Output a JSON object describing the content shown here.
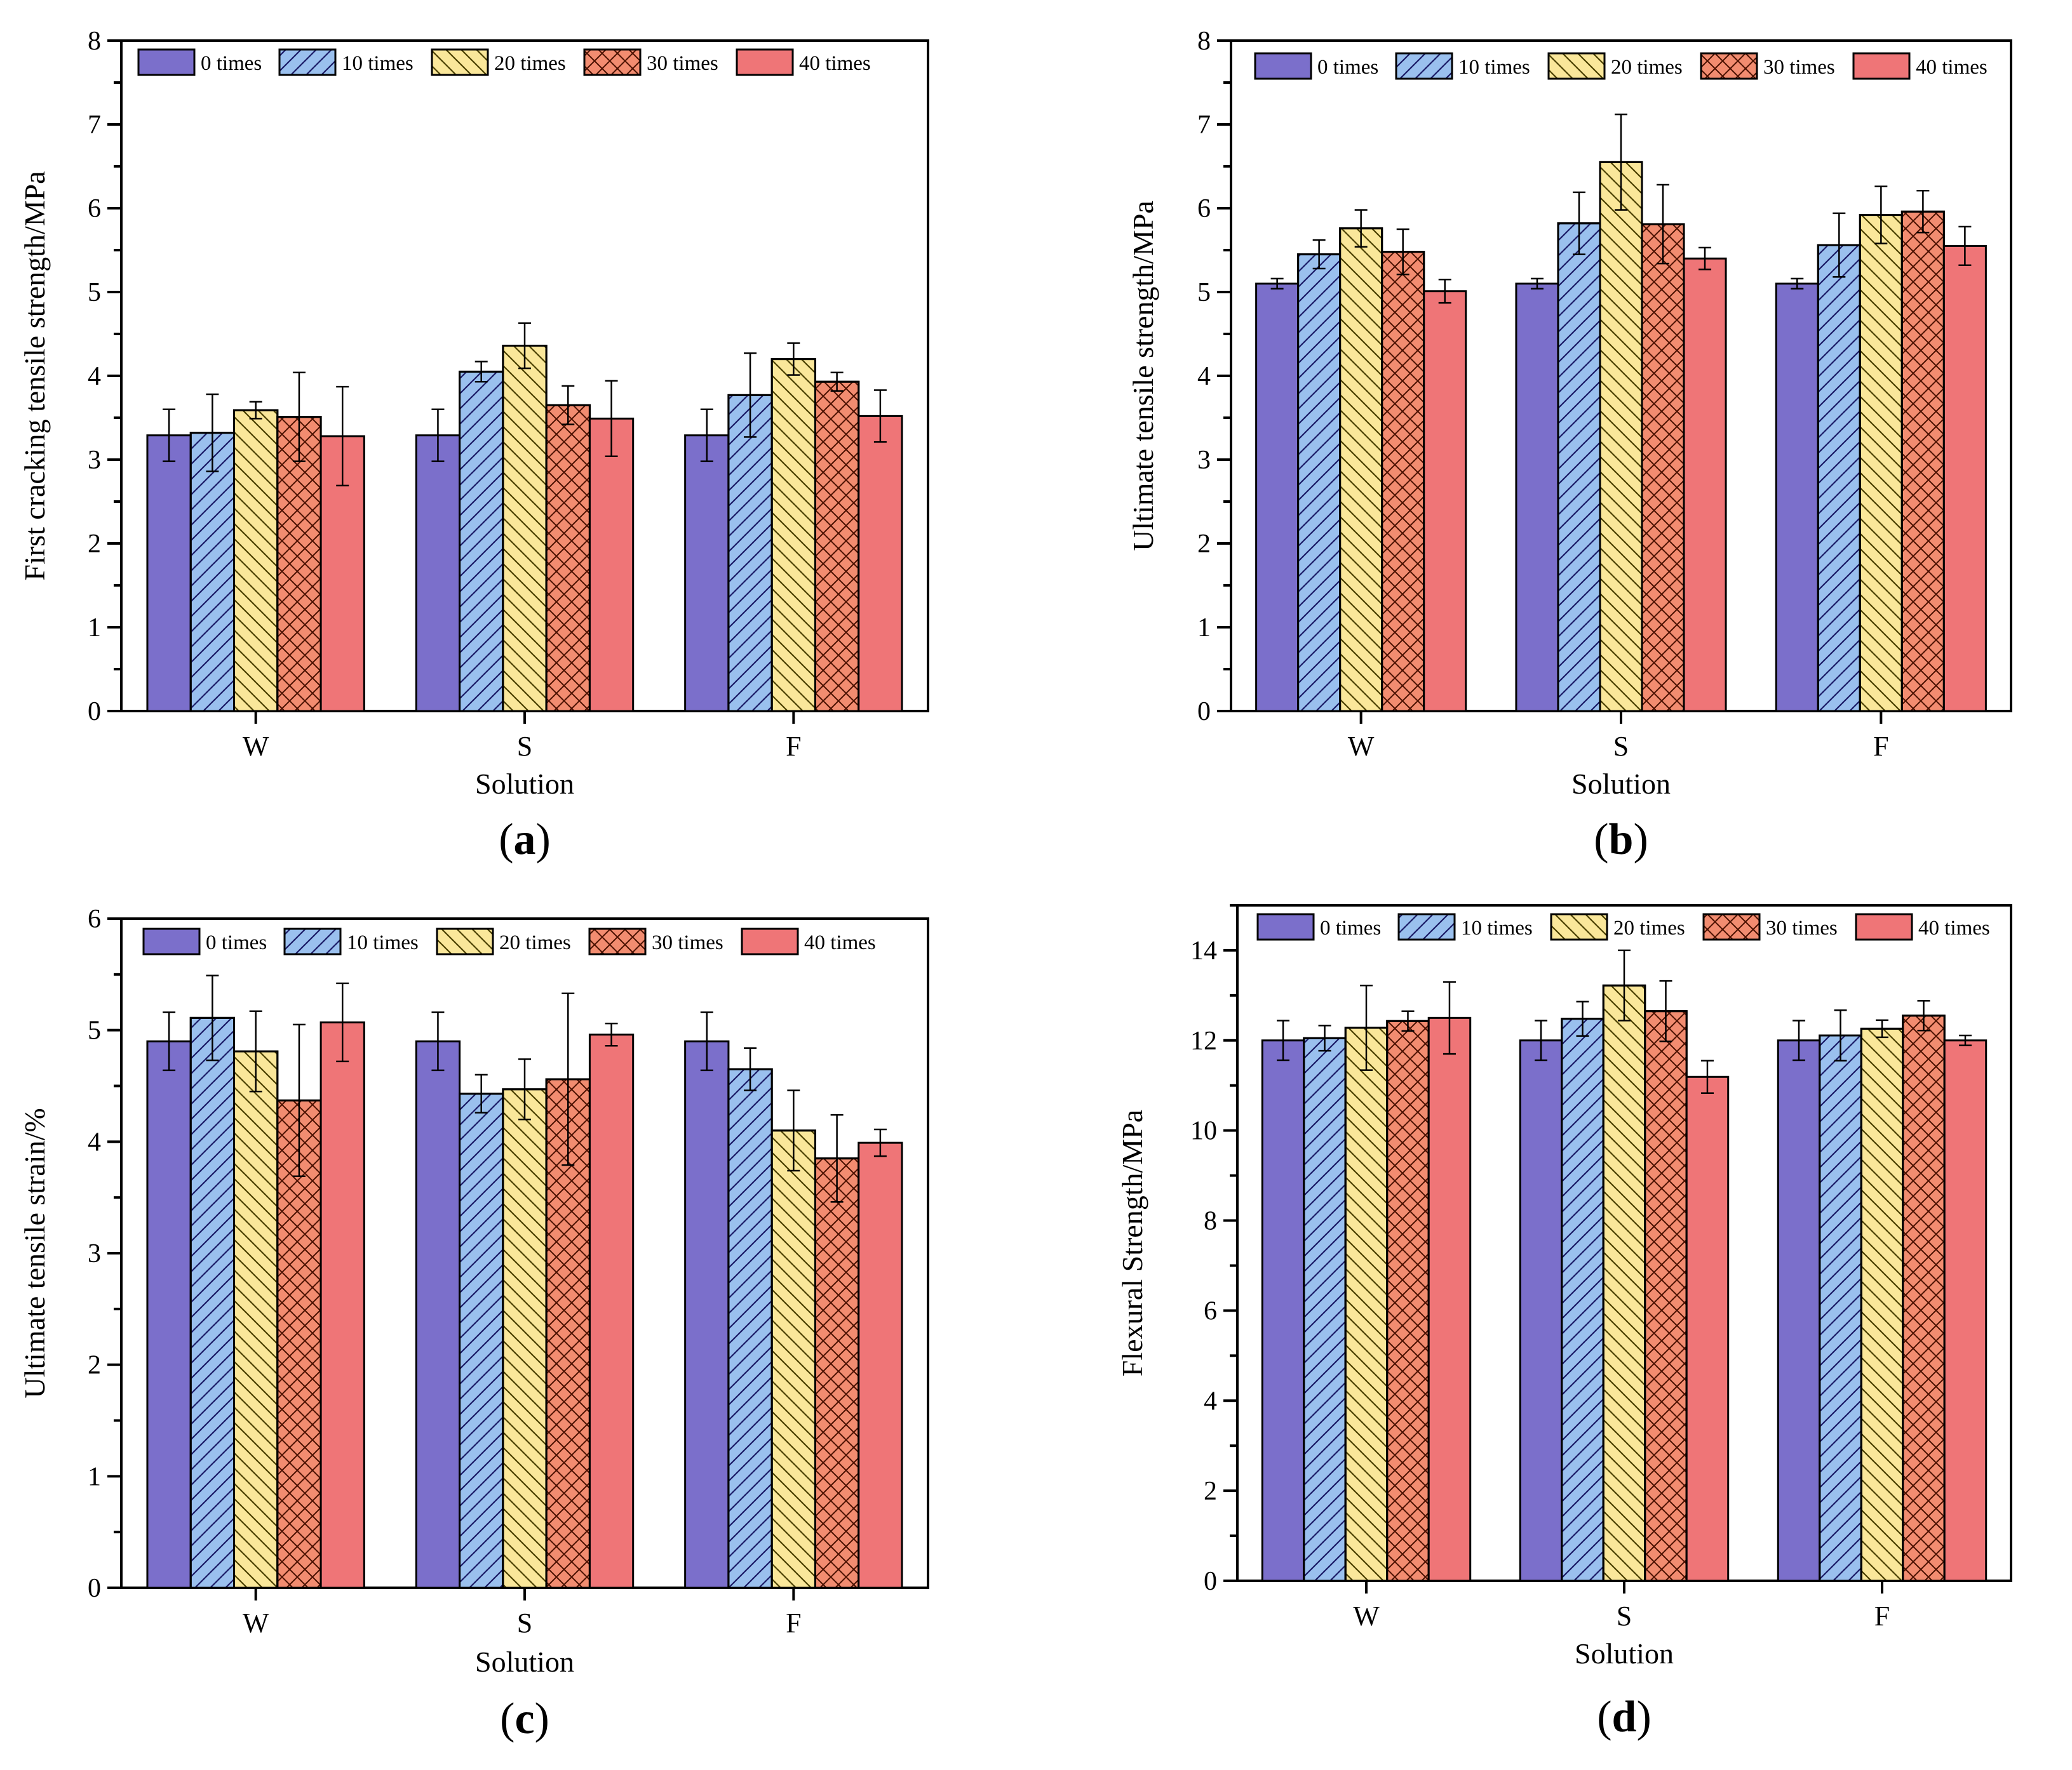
{
  "chart_data": [
    {
      "type": "bar",
      "panel_label": "a",
      "title": "",
      "xlabel": "Solution",
      "ylabel": "First cracking tensile strength/MPa",
      "categories": [
        "W",
        "S",
        "F"
      ],
      "ylim": [
        0,
        8
      ],
      "yticks": [
        0,
        1,
        2,
        3,
        4,
        5,
        6,
        7,
        8
      ],
      "y_minor_step": 0.5,
      "series": [
        {
          "name": "0 times",
          "values": [
            3.29,
            3.29,
            3.29
          ],
          "errors": [
            0.31,
            0.31,
            0.31
          ]
        },
        {
          "name": "10 times",
          "values": [
            3.32,
            4.05,
            3.77
          ],
          "errors": [
            0.46,
            0.12,
            0.5
          ]
        },
        {
          "name": "20 times",
          "values": [
            3.59,
            4.36,
            4.2
          ],
          "errors": [
            0.1,
            0.27,
            0.19
          ]
        },
        {
          "name": "30 times",
          "values": [
            3.51,
            3.65,
            3.93
          ],
          "errors": [
            0.53,
            0.23,
            0.11
          ]
        },
        {
          "name": "40 times",
          "values": [
            3.28,
            3.49,
            3.52
          ],
          "errors": [
            0.59,
            0.45,
            0.31
          ]
        }
      ]
    },
    {
      "type": "bar",
      "panel_label": "b",
      "title": "",
      "xlabel": "Solution",
      "ylabel": "Ultimate tensile strength/MPa",
      "categories": [
        "W",
        "S",
        "F"
      ],
      "ylim": [
        0,
        8
      ],
      "yticks": [
        0,
        1,
        2,
        3,
        4,
        5,
        6,
        7,
        8
      ],
      "y_minor_step": 0.5,
      "series": [
        {
          "name": "0 times",
          "values": [
            5.1,
            5.1,
            5.1
          ],
          "errors": [
            0.06,
            0.06,
            0.06
          ]
        },
        {
          "name": "10 times",
          "values": [
            5.45,
            5.82,
            5.56
          ],
          "errors": [
            0.17,
            0.37,
            0.38
          ]
        },
        {
          "name": "20 times",
          "values": [
            5.76,
            6.55,
            5.92
          ],
          "errors": [
            0.22,
            0.57,
            0.34
          ]
        },
        {
          "name": "30 times",
          "values": [
            5.48,
            5.81,
            5.96
          ],
          "errors": [
            0.27,
            0.47,
            0.25
          ]
        },
        {
          "name": "40 times",
          "values": [
            5.01,
            5.4,
            5.55
          ],
          "errors": [
            0.14,
            0.13,
            0.23
          ]
        }
      ]
    },
    {
      "type": "bar",
      "panel_label": "c",
      "title": "",
      "xlabel": "Solution",
      "ylabel": "Ultimate tensile strain/%",
      "categories": [
        "W",
        "S",
        "F"
      ],
      "ylim": [
        0,
        6
      ],
      "yticks": [
        0,
        1,
        2,
        3,
        4,
        5,
        6
      ],
      "y_minor_step": 0.5,
      "series": [
        {
          "name": "0 times",
          "values": [
            4.9,
            4.9,
            4.9
          ],
          "errors": [
            0.26,
            0.26,
            0.26
          ]
        },
        {
          "name": "10 times",
          "values": [
            5.11,
            4.43,
            4.65
          ],
          "errors": [
            0.38,
            0.17,
            0.19
          ]
        },
        {
          "name": "20 times",
          "values": [
            4.81,
            4.47,
            4.1
          ],
          "errors": [
            0.36,
            0.27,
            0.36
          ]
        },
        {
          "name": "30 times",
          "values": [
            4.37,
            4.56,
            3.85
          ],
          "errors": [
            0.68,
            0.77,
            0.39
          ]
        },
        {
          "name": "40 times",
          "values": [
            5.07,
            4.96,
            3.99
          ],
          "errors": [
            0.35,
            0.1,
            0.12
          ]
        }
      ]
    },
    {
      "type": "bar",
      "panel_label": "d",
      "title": "",
      "xlabel": "Solution",
      "ylabel": "Flexural Strength/MPa",
      "categories": [
        "W",
        "S",
        "F"
      ],
      "ylim": [
        0,
        15
      ],
      "yticks": [
        0,
        2,
        4,
        6,
        8,
        10,
        12,
        14
      ],
      "y_minor_step": 1,
      "series": [
        {
          "name": "0 times",
          "values": [
            12.0,
            12.0,
            12.0
          ],
          "errors": [
            0.44,
            0.44,
            0.44
          ]
        },
        {
          "name": "10 times",
          "values": [
            12.05,
            12.48,
            12.11
          ],
          "errors": [
            0.28,
            0.38,
            0.56
          ]
        },
        {
          "name": "20 times",
          "values": [
            12.28,
            13.22,
            12.26
          ],
          "errors": [
            0.94,
            0.78,
            0.19
          ]
        },
        {
          "name": "30 times",
          "values": [
            12.43,
            12.65,
            12.55
          ],
          "errors": [
            0.22,
            0.67,
            0.33
          ]
        },
        {
          "name": "40 times",
          "values": [
            12.5,
            11.19,
            12.0
          ],
          "errors": [
            0.8,
            0.36,
            0.11
          ]
        }
      ]
    }
  ],
  "series_style": [
    {
      "color": "#7B6FCB",
      "pattern": "solid",
      "pattern_color": ""
    },
    {
      "color": "#9AC0EE",
      "pattern": "diag-up",
      "pattern_color": "#1a1a66"
    },
    {
      "color": "#FAE79A",
      "pattern": "diag-down",
      "pattern_color": "#4a4000"
    },
    {
      "color": "#F28C70",
      "pattern": "crosshatch",
      "pattern_color": "#4a1000"
    },
    {
      "color": "#EF7577",
      "pattern": "solid",
      "pattern_color": ""
    }
  ]
}
